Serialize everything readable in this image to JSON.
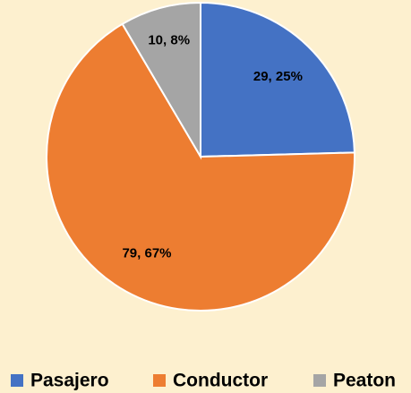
{
  "chart_data": {
    "type": "pie",
    "categories": [
      "Pasajero",
      "Conductor",
      "Peaton"
    ],
    "values": [
      29,
      79,
      10
    ],
    "value_labels": [
      "29, 25%",
      "79, 67%",
      "10, 8%"
    ],
    "colors": [
      "#4472c4",
      "#ed7d31",
      "#a5a5a5"
    ],
    "legend": "bottom"
  }
}
